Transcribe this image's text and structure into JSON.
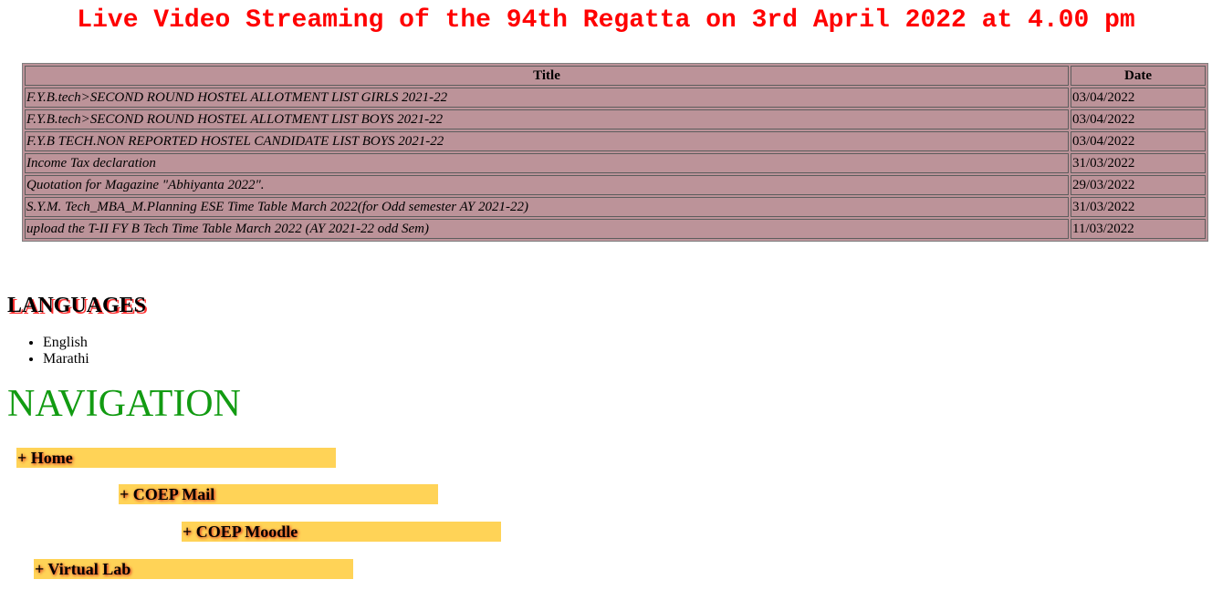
{
  "banner": {
    "text": "Live Video Streaming of the 94th Regatta on 3rd April 2022 at 4.00 pm",
    "color": "#ff0000"
  },
  "notices": {
    "headers": {
      "title": "Title",
      "date": "Date"
    },
    "rows": [
      {
        "title": "F.Y.B.tech>SECOND ROUND HOSTEL ALLOTMENT LIST GIRLS 2021-22",
        "date": "03/04/2022"
      },
      {
        "title": "F.Y.B.tech>SECOND ROUND HOSTEL ALLOTMENT LIST BOYS 2021-22",
        "date": "03/04/2022"
      },
      {
        "title": "F.Y.B TECH.NON REPORTED HOSTEL CANDIDATE LIST BOYS 2021-22",
        "date": "03/04/2022"
      },
      {
        "title": "Income Tax declaration",
        "date": "31/03/2022"
      },
      {
        "title": "Quotation for Magazine \"Abhiyanta 2022\".",
        "date": "29/03/2022"
      },
      {
        "title": "S.Y.M. Tech_MBA_M.Planning ESE Time Table March 2022(for Odd semester AY 2021-22)",
        "date": "31/03/2022"
      },
      {
        "title": "upload the T-II FY B Tech Time Table March 2022 (AY 2021-22 odd Sem)",
        "date": "11/03/2022"
      }
    ],
    "background_color": "#bc9399"
  },
  "languages": {
    "heading": "LANGUAGES",
    "items": [
      "English",
      "Marathi"
    ]
  },
  "navigation": {
    "heading": "NAVIGATION",
    "heading_color": "#129b12",
    "item_color": "#ffd357",
    "items": [
      {
        "label": "+ Home"
      },
      {
        "label": "+ COEP Mail"
      },
      {
        "label": "+ COEP Moodle"
      },
      {
        "label": "+ Virtual Lab"
      }
    ]
  }
}
